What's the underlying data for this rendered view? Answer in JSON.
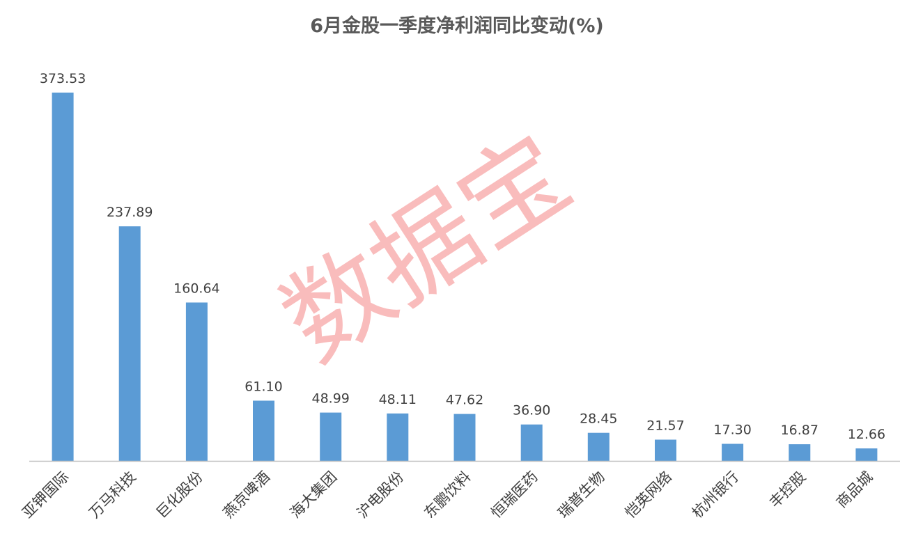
{
  "chart_data": {
    "type": "bar",
    "title": "6月金股一季度净利润同比变动(%)",
    "xlabel": "",
    "ylabel": "",
    "ylim": [
      0,
      400
    ],
    "grid": false,
    "legend": "none",
    "categories": [
      "亚钾国际",
      "万马科技",
      "巨化股份",
      "燕京啤酒",
      "海大集团",
      "沪电股份",
      "东鹏饮料",
      "恒瑞医药",
      "瑞普生物",
      "恺英网络",
      "杭州银行",
      "丰控股",
      "商品城"
    ],
    "values": [
      373.53,
      237.89,
      160.64,
      61.1,
      48.99,
      48.11,
      47.62,
      36.9,
      28.45,
      21.57,
      17.3,
      16.87,
      12.66
    ],
    "value_labels": [
      "373.53",
      "237.89",
      "160.64",
      "61.10",
      "48.99",
      "48.11",
      "47.62",
      "36.90",
      "28.45",
      "21.57",
      "17.30",
      "16.87",
      "12.66"
    ],
    "bar_color": "#5b9bd5",
    "axis_color": "#bfbfbf"
  },
  "watermark": {
    "text": "数据宝",
    "color": "#f26b6b"
  }
}
